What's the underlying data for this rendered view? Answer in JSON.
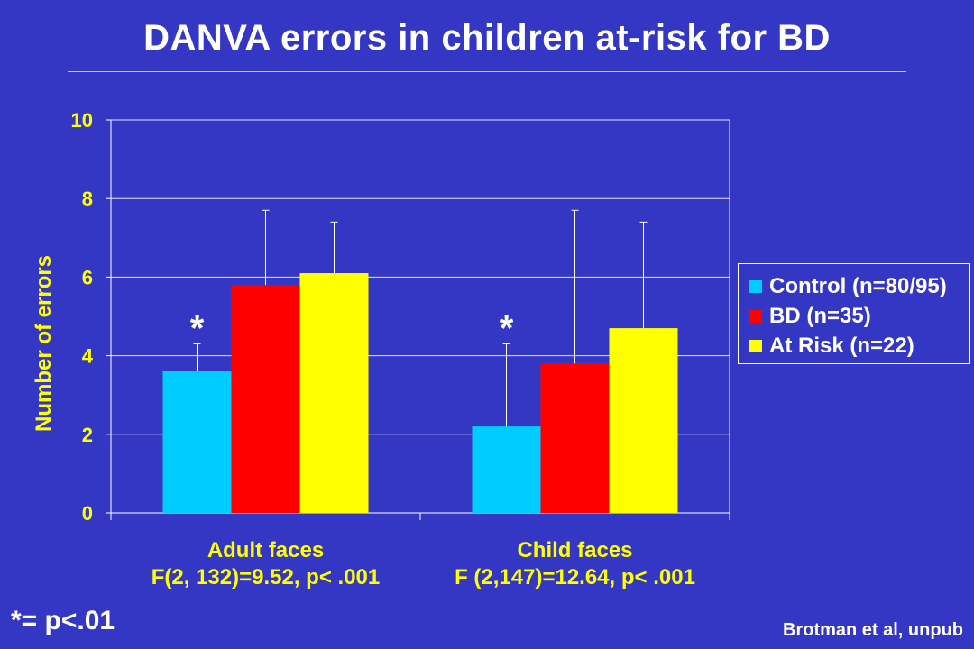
{
  "title": "DANVA errors in children at-risk for BD",
  "chart_data": {
    "type": "bar",
    "ylabel": "Number of errors",
    "xlabel": "",
    "ylim": [
      0,
      10
    ],
    "yticks": [
      "0",
      "2",
      "4",
      "6",
      "8",
      "10"
    ],
    "categories": [
      "Adult faces",
      "Child faces"
    ],
    "category_stats": [
      "F(2, 132)=9.52, p< .001",
      "F (2,147)=12.64, p< .001"
    ],
    "series": [
      {
        "name": "Control (n=80/95)",
        "color": "#00ccff",
        "values": [
          3.6,
          2.2
        ],
        "error_low": [
          1.6,
          1.6
        ],
        "error_high": [
          4.3,
          4.3
        ]
      },
      {
        "name": "BD (n=35)",
        "color": "#ff0000",
        "values": [
          5.8,
          3.8
        ],
        "error_low": [
          2.0,
          2.0
        ],
        "error_high": [
          7.7,
          7.7
        ]
      },
      {
        "name": "At Risk (n=22)",
        "color": "#ffff00",
        "values": [
          6.1,
          4.7
        ],
        "error_low": [
          3.4,
          3.4
        ],
        "error_high": [
          7.4,
          7.4
        ]
      }
    ],
    "significance_marker": "*",
    "significance_categories": [
      0,
      1
    ],
    "grid": true,
    "legend_position": "right",
    "axis_label_color": "#ffff00",
    "text_color": "#ffffff"
  },
  "footnote": "*= p<.01",
  "source": "Brotman et al, unpub"
}
